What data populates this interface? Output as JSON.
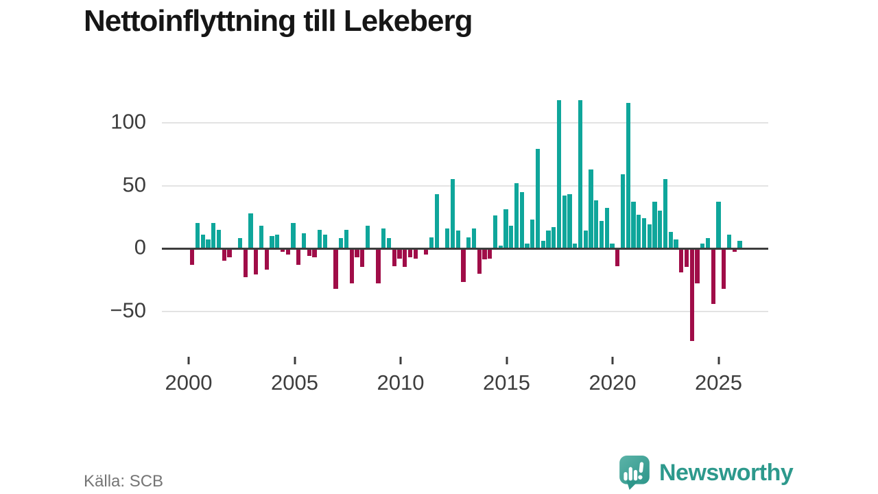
{
  "title": "Nettoinflyttning till Lekeberg",
  "source": "Källa: SCB",
  "branding": {
    "logo_text": "Newsworthy",
    "logo_icon": "speech-bubble-bar-chart-icon"
  },
  "chart_data": {
    "type": "bar",
    "title": "Nettoinflyttning till Lekeberg",
    "xlabel": "",
    "ylabel": "",
    "frequency": "quarterly",
    "x_start": "2000Q1",
    "x_end": "2025Q4",
    "series": [
      {
        "name": "Nettoinflyttning",
        "values": [
          -13,
          20,
          11,
          7,
          20,
          15,
          -10,
          -7,
          0,
          8,
          -23,
          28,
          -21,
          18,
          -17,
          10,
          11,
          -3,
          -5,
          20,
          -13,
          12,
          -6,
          -7,
          15,
          11,
          0,
          -32,
          8,
          15,
          -28,
          -7,
          -15,
          18,
          0,
          -28,
          16,
          8,
          -14,
          -8,
          -15,
          -7,
          -8,
          0,
          -5,
          9,
          43,
          0,
          16,
          55,
          14,
          -27,
          9,
          16,
          -20,
          -9,
          -8,
          26,
          2,
          31,
          18,
          52,
          45,
          4,
          23,
          79,
          6,
          14,
          17,
          118,
          42,
          43,
          4,
          118,
          14,
          63,
          38,
          22,
          32,
          4,
          -14,
          59,
          116,
          37,
          27,
          24,
          19,
          37,
          30,
          55,
          13,
          7,
          -19,
          -15,
          -74,
          -28,
          4,
          8,
          -44,
          37,
          -32,
          11,
          -3,
          6
        ]
      }
    ],
    "y_ticks": [
      100,
      50,
      0,
      -50
    ],
    "y_tick_labels": [
      "100",
      "50",
      "0",
      "−50"
    ],
    "x_tick_years": [
      2000,
      2005,
      2010,
      2015,
      2020,
      2025
    ],
    "ylim": [
      -80,
      125
    ],
    "grid": true,
    "legend": false,
    "colors": {
      "positive": "#0fa69b",
      "negative": "#a00d48"
    }
  }
}
